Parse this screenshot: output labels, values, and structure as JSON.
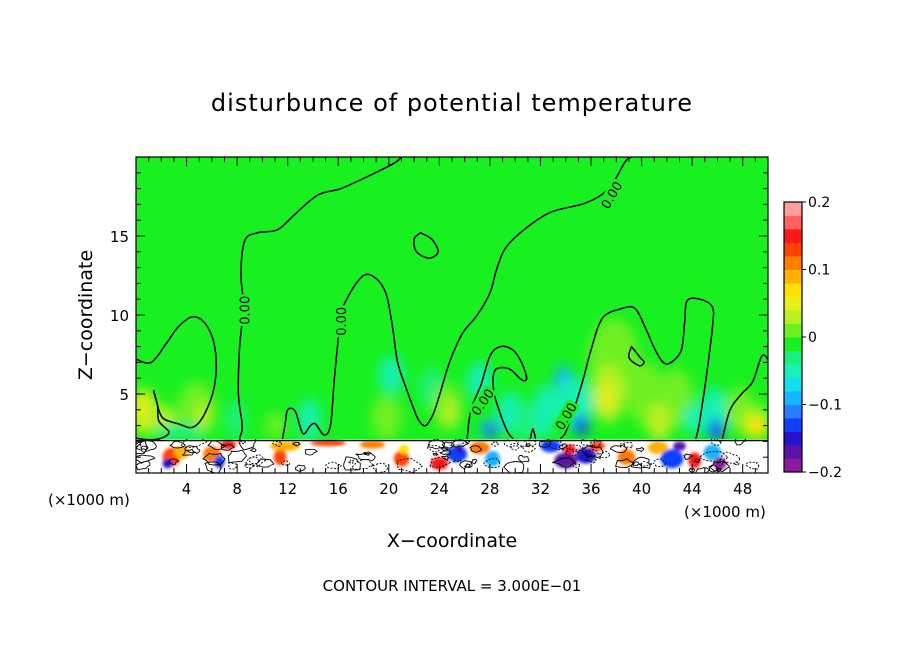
{
  "chart_data": {
    "type": "heatmap",
    "title": "disturbunce of potential temperature",
    "xlabel": "X−coordinate",
    "ylabel": "Z−coordinate",
    "x_unit_left": "(×1000 m)",
    "x_unit_right": "(×1000 m)",
    "footer": "CONTOUR INTERVAL = 3.000E−01",
    "xlim": [
      0,
      50
    ],
    "ylim": [
      0,
      20
    ],
    "x_ticks": [
      4,
      8,
      12,
      16,
      20,
      24,
      28,
      32,
      36,
      40,
      44,
      48
    ],
    "y_ticks": [
      5,
      10,
      15
    ],
    "colorbar": {
      "range": [
        -0.2,
        0.2
      ],
      "tick_values": [
        0.2,
        0.1,
        0,
        -0.1,
        -0.2
      ],
      "tick_labels": [
        "0.2",
        "0.1",
        "0",
        "−0.1",
        "−0.2"
      ],
      "colors": [
        "#8b1a9c",
        "#5a14a8",
        "#2416c8",
        "#1040ff",
        "#2a7cff",
        "#17b4ff",
        "#10e0ee",
        "#18f0b4",
        "#1af07a",
        "#18f020",
        "#70f020",
        "#b8f020",
        "#e6f018",
        "#ffe000",
        "#ffb000",
        "#ff7c00",
        "#ff4400",
        "#ff1818",
        "#ff6060",
        "#ff9c9c"
      ]
    },
    "contour_level": "0.00",
    "contour_labels": [
      {
        "text": "0.00",
        "x": 8.6,
        "z": 10.3,
        "rotate": -90
      },
      {
        "text": "0.00",
        "x": 16.2,
        "z": 9.6,
        "rotate": -90
      },
      {
        "text": "0.00",
        "x": 37.6,
        "z": 17.6,
        "rotate": -60
      },
      {
        "text": "0.00",
        "x": 27.4,
        "z": 4.5,
        "rotate": -55
      },
      {
        "text": "0.00",
        "x": 34.0,
        "z": 3.6,
        "rotate": -60
      }
    ],
    "contours": [
      [
        [
          0,
          7.2
        ],
        [
          1.2,
          7.0
        ],
        [
          2.4,
          8.2
        ],
        [
          3.4,
          9.3
        ],
        [
          4.6,
          9.9
        ],
        [
          5.7,
          9.2
        ],
        [
          6.3,
          7.6
        ],
        [
          6.2,
          5.5
        ],
        [
          5.4,
          3.7
        ],
        [
          4.5,
          2.9
        ],
        [
          3.4,
          3.1
        ],
        [
          2.1,
          3.5
        ],
        [
          1.6,
          4.6
        ],
        [
          1.4,
          5.2
        ],
        [
          1.7,
          4.3
        ],
        [
          1.8,
          3.3
        ],
        [
          2.6,
          2.6
        ],
        [
          2.0,
          2.2
        ],
        [
          1.0,
          2.1
        ],
        [
          0,
          2.2
        ]
      ],
      [
        [
          8.2,
          2.2
        ],
        [
          8.4,
          3.0
        ],
        [
          8.1,
          5.0
        ],
        [
          8.2,
          8.0
        ],
        [
          8.5,
          10.5
        ],
        [
          8.3,
          12.6
        ],
        [
          8.6,
          14.7
        ],
        [
          9.6,
          15.2
        ],
        [
          11.2,
          15.4
        ],
        [
          12.6,
          16.4
        ],
        [
          14.4,
          17.6
        ],
        [
          16.2,
          18.0
        ],
        [
          18.4,
          18.8
        ],
        [
          20.4,
          19.6
        ],
        [
          21.0,
          20.0
        ]
      ],
      [
        [
          11.6,
          2.2
        ],
        [
          11.8,
          3.1
        ],
        [
          12.0,
          4.0
        ],
        [
          12.6,
          3.9
        ],
        [
          13.2,
          2.5
        ],
        [
          13.8,
          3.0
        ],
        [
          14.2,
          3.1
        ],
        [
          14.9,
          2.4
        ],
        [
          15.4,
          3.1
        ],
        [
          15.7,
          6.0
        ],
        [
          16.2,
          9.8
        ],
        [
          16.8,
          11.2
        ],
        [
          18.0,
          12.5
        ],
        [
          19.0,
          12.3
        ],
        [
          19.8,
          11.3
        ],
        [
          20.3,
          9.2
        ],
        [
          20.7,
          7.0
        ],
        [
          21.4,
          5.3
        ],
        [
          22.0,
          4.0
        ],
        [
          22.4,
          3.3
        ],
        [
          22.9,
          3.0
        ],
        [
          23.5,
          3.7
        ],
        [
          24.0,
          4.9
        ],
        [
          24.8,
          7.0
        ],
        [
          25.8,
          8.8
        ],
        [
          27.0,
          10.0
        ],
        [
          28.0,
          11.4
        ],
        [
          28.5,
          12.8
        ],
        [
          29.2,
          14.2
        ],
        [
          30.7,
          15.4
        ],
        [
          32.8,
          16.5
        ],
        [
          35.6,
          17.1
        ],
        [
          37.4,
          18.0
        ],
        [
          38.7,
          19.7
        ],
        [
          39.2,
          20.0
        ]
      ],
      [
        [
          22.5,
          15.2
        ],
        [
          23.4,
          14.8
        ],
        [
          23.9,
          14.0
        ],
        [
          23.2,
          13.6
        ],
        [
          22.2,
          14.0
        ],
        [
          22.0,
          14.8
        ],
        [
          22.5,
          15.2
        ]
      ],
      [
        [
          26.2,
          2.2
        ],
        [
          26.5,
          4.0
        ],
        [
          27.3,
          5.6
        ],
        [
          28.0,
          7.4
        ],
        [
          28.8,
          8.0
        ],
        [
          29.8,
          7.8
        ],
        [
          30.5,
          7.0
        ],
        [
          30.9,
          6.0
        ],
        [
          30.5,
          5.9
        ],
        [
          29.5,
          6.6
        ],
        [
          28.4,
          6.5
        ],
        [
          28.3,
          5.2
        ],
        [
          28.8,
          3.8
        ],
        [
          29.4,
          2.6
        ],
        [
          29.8,
          2.2
        ]
      ],
      [
        [
          31.2,
          2.2
        ],
        [
          31.4,
          2.8
        ],
        [
          31.6,
          2.2
        ]
      ],
      [
        [
          33.6,
          2.2
        ],
        [
          34.0,
          2.6
        ],
        [
          34.8,
          4.4
        ],
        [
          35.4,
          6.0
        ],
        [
          36.0,
          7.8
        ],
        [
          36.9,
          9.8
        ],
        [
          38.4,
          10.4
        ],
        [
          39.5,
          10.4
        ],
        [
          40.4,
          9.0
        ],
        [
          41.2,
          7.6
        ],
        [
          42.0,
          6.9
        ],
        [
          43.1,
          7.7
        ],
        [
          43.4,
          9.5
        ],
        [
          43.6,
          10.9
        ],
        [
          44.6,
          11.0
        ],
        [
          45.6,
          10.5
        ],
        [
          45.6,
          9.2
        ],
        [
          45.1,
          6.0
        ],
        [
          44.6,
          3.3
        ],
        [
          44.4,
          2.5
        ],
        [
          44.3,
          2.2
        ]
      ],
      [
        [
          39.2,
          8.0
        ],
        [
          39.9,
          7.3
        ],
        [
          40.2,
          7.0
        ],
        [
          39.8,
          6.8
        ],
        [
          39.0,
          7.3
        ],
        [
          39.2,
          8.0
        ]
      ],
      [
        [
          46.4,
          2.2
        ],
        [
          47.0,
          4.0
        ],
        [
          47.9,
          5.0
        ],
        [
          48.8,
          5.8
        ],
        [
          49.5,
          7.4
        ],
        [
          50,
          7.2
        ]
      ]
    ],
    "color_patches": [
      {
        "x": 0.6,
        "z": 3.9,
        "rx": 1.0,
        "rz": 1.4,
        "c": "#e6f018"
      },
      {
        "x": 1.8,
        "z": 3.5,
        "rx": 1.4,
        "rz": 0.8,
        "c": "#b8f020"
      },
      {
        "x": 4.8,
        "z": 4.0,
        "rx": 1.5,
        "rz": 1.8,
        "c": "#70f020"
      },
      {
        "x": 5.3,
        "z": 3.6,
        "rx": 0.6,
        "rz": 0.9,
        "c": "#b8f020"
      },
      {
        "x": 3.4,
        "z": 2.6,
        "rx": 2.0,
        "rz": 0.6,
        "c": "#1af07a"
      },
      {
        "x": 7.9,
        "z": 3.4,
        "rx": 0.8,
        "rz": 1.2,
        "c": "#1af07a"
      },
      {
        "x": 13.7,
        "z": 3.4,
        "rx": 0.9,
        "rz": 1.3,
        "c": "#18f0b4"
      },
      {
        "x": 11.0,
        "z": 3.0,
        "rx": 0.8,
        "rz": 0.8,
        "c": "#70f020"
      },
      {
        "x": 19.8,
        "z": 3.5,
        "rx": 1.2,
        "rz": 1.4,
        "c": "#70f020"
      },
      {
        "x": 20.2,
        "z": 6.2,
        "rx": 1.0,
        "rz": 1.2,
        "c": "#18f0b4"
      },
      {
        "x": 23.4,
        "z": 5.4,
        "rx": 1.0,
        "rz": 1.3,
        "c": "#1af07a"
      },
      {
        "x": 24.6,
        "z": 4.2,
        "rx": 1.2,
        "rz": 1.5,
        "c": "#70f020"
      },
      {
        "x": 24.9,
        "z": 3.8,
        "rx": 0.6,
        "rz": 0.9,
        "c": "#b8f020"
      },
      {
        "x": 27.2,
        "z": 5.8,
        "rx": 1.0,
        "rz": 1.2,
        "c": "#18f0b4"
      },
      {
        "x": 28.0,
        "z": 2.8,
        "rx": 0.8,
        "rz": 0.6,
        "c": "#17b4ff"
      },
      {
        "x": 28.1,
        "z": 2.6,
        "rx": 0.4,
        "rz": 0.4,
        "c": "#2416c8"
      },
      {
        "x": 29.6,
        "z": 3.8,
        "rx": 1.1,
        "rz": 1.3,
        "c": "#18f0b4"
      },
      {
        "x": 31.3,
        "z": 3.2,
        "rx": 1.4,
        "rz": 1.3,
        "c": "#1af07a"
      },
      {
        "x": 32.4,
        "z": 4.0,
        "rx": 0.9,
        "rz": 1.6,
        "c": "#18f0b4"
      },
      {
        "x": 33.8,
        "z": 5.8,
        "rx": 0.7,
        "rz": 1.0,
        "c": "#17b4ff"
      },
      {
        "x": 34.7,
        "z": 4.5,
        "rx": 1.5,
        "rz": 1.6,
        "c": "#18f0b4"
      },
      {
        "x": 35.2,
        "z": 3.0,
        "rx": 0.6,
        "rz": 0.6,
        "c": "#1040ff"
      },
      {
        "x": 37.8,
        "z": 7.2,
        "rx": 2.0,
        "rz": 2.6,
        "c": "#70f020"
      },
      {
        "x": 37.4,
        "z": 5.0,
        "rx": 1.3,
        "rz": 1.8,
        "c": "#b8f020"
      },
      {
        "x": 37.2,
        "z": 4.8,
        "rx": 0.6,
        "rz": 0.8,
        "c": "#e6f018"
      },
      {
        "x": 40.3,
        "z": 5.0,
        "rx": 1.5,
        "rz": 2.0,
        "c": "#70f020"
      },
      {
        "x": 42.7,
        "z": 4.8,
        "rx": 1.4,
        "rz": 1.8,
        "c": "#70f020"
      },
      {
        "x": 41.4,
        "z": 3.2,
        "rx": 1.0,
        "rz": 1.2,
        "c": "#b8f020"
      },
      {
        "x": 44.0,
        "z": 3.4,
        "rx": 0.6,
        "rz": 1.0,
        "c": "#18f0b4"
      },
      {
        "x": 45.7,
        "z": 3.8,
        "rx": 1.2,
        "rz": 1.6,
        "c": "#18f0b4"
      },
      {
        "x": 45.9,
        "z": 2.7,
        "rx": 0.6,
        "rz": 0.7,
        "c": "#1040ff"
      },
      {
        "x": 47.8,
        "z": 4.0,
        "rx": 1.2,
        "rz": 1.4,
        "c": "#70f020"
      },
      {
        "x": 49.0,
        "z": 3.2,
        "rx": 1.2,
        "rz": 1.0,
        "c": "#b8f020"
      },
      {
        "x": 49.2,
        "z": 2.8,
        "rx": 0.8,
        "rz": 0.6,
        "c": "#ffe000"
      }
    ],
    "surface_patches": [
      {
        "x": 2.8,
        "z": 1.0,
        "rx": 0.7,
        "rz": 0.6,
        "c": "#ff4400"
      },
      {
        "x": 2.5,
        "z": 0.6,
        "rx": 0.4,
        "rz": 0.3,
        "c": "#2416c8"
      },
      {
        "x": 3.6,
        "z": 1.3,
        "rx": 0.6,
        "rz": 0.4,
        "c": "#ffb000"
      },
      {
        "x": 6.0,
        "z": 1.2,
        "rx": 0.7,
        "rz": 0.5,
        "c": "#ff7c00"
      },
      {
        "x": 6.6,
        "z": 0.7,
        "rx": 0.4,
        "rz": 0.4,
        "c": "#1040ff"
      },
      {
        "x": 7.3,
        "z": 1.8,
        "rx": 0.6,
        "rz": 0.3,
        "c": "#ff1818"
      },
      {
        "x": 11.4,
        "z": 1.0,
        "rx": 0.5,
        "rz": 0.5,
        "c": "#ff4400"
      },
      {
        "x": 11.8,
        "z": 1.7,
        "rx": 1.2,
        "rz": 0.3,
        "c": "#ffb000"
      },
      {
        "x": 15.2,
        "z": 1.9,
        "rx": 1.4,
        "rz": 0.2,
        "c": "#ff4400"
      },
      {
        "x": 18.7,
        "z": 1.8,
        "rx": 1.0,
        "rz": 0.25,
        "c": "#ff7c00"
      },
      {
        "x": 21.0,
        "z": 0.9,
        "rx": 0.6,
        "rz": 0.5,
        "c": "#ff4400"
      },
      {
        "x": 21.2,
        "z": 1.5,
        "rx": 0.4,
        "rz": 0.3,
        "c": "#ffe000"
      },
      {
        "x": 24.0,
        "z": 0.6,
        "rx": 0.7,
        "rz": 0.4,
        "c": "#ff1818"
      },
      {
        "x": 25.4,
        "z": 1.2,
        "rx": 0.8,
        "rz": 0.5,
        "c": "#1040ff"
      },
      {
        "x": 25.6,
        "z": 1.5,
        "rx": 0.3,
        "rz": 0.3,
        "c": "#2416c8"
      },
      {
        "x": 27.2,
        "z": 1.6,
        "rx": 0.8,
        "rz": 0.4,
        "c": "#ff7c00"
      },
      {
        "x": 28.2,
        "z": 0.9,
        "rx": 0.6,
        "rz": 0.5,
        "c": "#17b4ff"
      },
      {
        "x": 32.8,
        "z": 1.7,
        "rx": 0.8,
        "rz": 0.4,
        "c": "#1040ff"
      },
      {
        "x": 34.0,
        "z": 0.8,
        "rx": 0.9,
        "rz": 0.5,
        "c": "#5a14a8"
      },
      {
        "x": 34.3,
        "z": 1.5,
        "rx": 0.5,
        "rz": 0.3,
        "c": "#ff1818"
      },
      {
        "x": 35.6,
        "z": 1.1,
        "rx": 0.8,
        "rz": 0.5,
        "c": "#2416c8"
      },
      {
        "x": 36.5,
        "z": 1.7,
        "rx": 0.6,
        "rz": 0.3,
        "c": "#ff4400"
      },
      {
        "x": 38.8,
        "z": 1.0,
        "rx": 0.7,
        "rz": 0.5,
        "c": "#ff7c00"
      },
      {
        "x": 41.3,
        "z": 1.6,
        "rx": 0.8,
        "rz": 0.4,
        "c": "#ffb000"
      },
      {
        "x": 42.4,
        "z": 0.9,
        "rx": 0.9,
        "rz": 0.6,
        "c": "#1040ff"
      },
      {
        "x": 43.0,
        "z": 1.7,
        "rx": 0.5,
        "rz": 0.3,
        "c": "#5a14a8"
      },
      {
        "x": 44.2,
        "z": 0.8,
        "rx": 0.5,
        "rz": 0.5,
        "c": "#ff1818"
      },
      {
        "x": 45.6,
        "z": 1.3,
        "rx": 0.7,
        "rz": 0.5,
        "c": "#17b4ff"
      },
      {
        "x": 46.2,
        "z": 0.6,
        "rx": 0.5,
        "rz": 0.4,
        "c": "#8b1a9c"
      }
    ]
  }
}
